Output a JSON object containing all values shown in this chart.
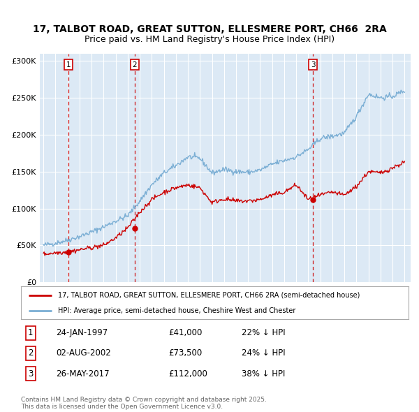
{
  "title": "17, TALBOT ROAD, GREAT SUTTON, ELLESMERE PORT, CH66  2RA",
  "subtitle": "Price paid vs. HM Land Registry's House Price Index (HPI)",
  "bg_color": "#dce9f5",
  "ylim": [
    0,
    310000
  ],
  "yticks": [
    0,
    50000,
    100000,
    150000,
    200000,
    250000,
    300000
  ],
  "ytick_labels": [
    "£0",
    "£50K",
    "£100K",
    "£150K",
    "£200K",
    "£250K",
    "£300K"
  ],
  "xstart": 1994.7,
  "xend": 2025.5,
  "sale_dates": [
    1997.07,
    2002.59,
    2017.4
  ],
  "sale_prices": [
    41000,
    73500,
    112000
  ],
  "sale_labels": [
    "1",
    "2",
    "3"
  ],
  "sale_date_strings": [
    "24-JAN-1997",
    "02-AUG-2002",
    "26-MAY-2017"
  ],
  "sale_price_strings": [
    "£41,000",
    "£73,500",
    "£112,000"
  ],
  "sale_hpi_strings": [
    "22% ↓ HPI",
    "24% ↓ HPI",
    "38% ↓ HPI"
  ],
  "red_color": "#cc0000",
  "blue_color": "#7aaed4",
  "grid_color": "#ffffff",
  "legend_label_red": "17, TALBOT ROAD, GREAT SUTTON, ELLESMERE PORT, CH66 2RA (semi-detached house)",
  "legend_label_blue": "HPI: Average price, semi-detached house, Cheshire West and Chester",
  "footer": "Contains HM Land Registry data © Crown copyright and database right 2025.\nThis data is licensed under the Open Government Licence v3.0.",
  "hpi_anchors_years": [
    1995,
    1996,
    1997,
    1998,
    1999,
    2000,
    2001,
    2002,
    2003,
    2004,
    2005,
    2006,
    2007,
    2008,
    2009,
    2010,
    2011,
    2012,
    2013,
    2014,
    2015,
    2016,
    2017,
    2018,
    2019,
    2020,
    2021,
    2022,
    2023,
    2024,
    2025
  ],
  "hpi_anchors_vals": [
    50000,
    53000,
    57000,
    62000,
    68000,
    75000,
    83000,
    90000,
    110000,
    132000,
    148000,
    158000,
    170000,
    168000,
    148000,
    153000,
    150000,
    149000,
    152000,
    160000,
    165000,
    170000,
    180000,
    195000,
    198000,
    202000,
    225000,
    255000,
    250000,
    252000,
    260000
  ],
  "red_anchors_years": [
    1995,
    1996,
    1997,
    1998,
    1999,
    2000,
    2001,
    2002,
    2003,
    2004,
    2005,
    2006,
    2007,
    2008,
    2009,
    2010,
    2011,
    2012,
    2013,
    2014,
    2015,
    2016,
    2017,
    2018,
    2019,
    2020,
    2021,
    2022,
    2023,
    2024,
    2025
  ],
  "red_anchors_vals": [
    38000,
    40000,
    41000,
    44000,
    47000,
    50000,
    60000,
    73500,
    95000,
    112000,
    122000,
    128000,
    132000,
    128000,
    108000,
    113000,
    110000,
    110000,
    112000,
    118000,
    122000,
    132000,
    112000,
    118000,
    122000,
    118000,
    130000,
    150000,
    148000,
    155000,
    163000
  ]
}
